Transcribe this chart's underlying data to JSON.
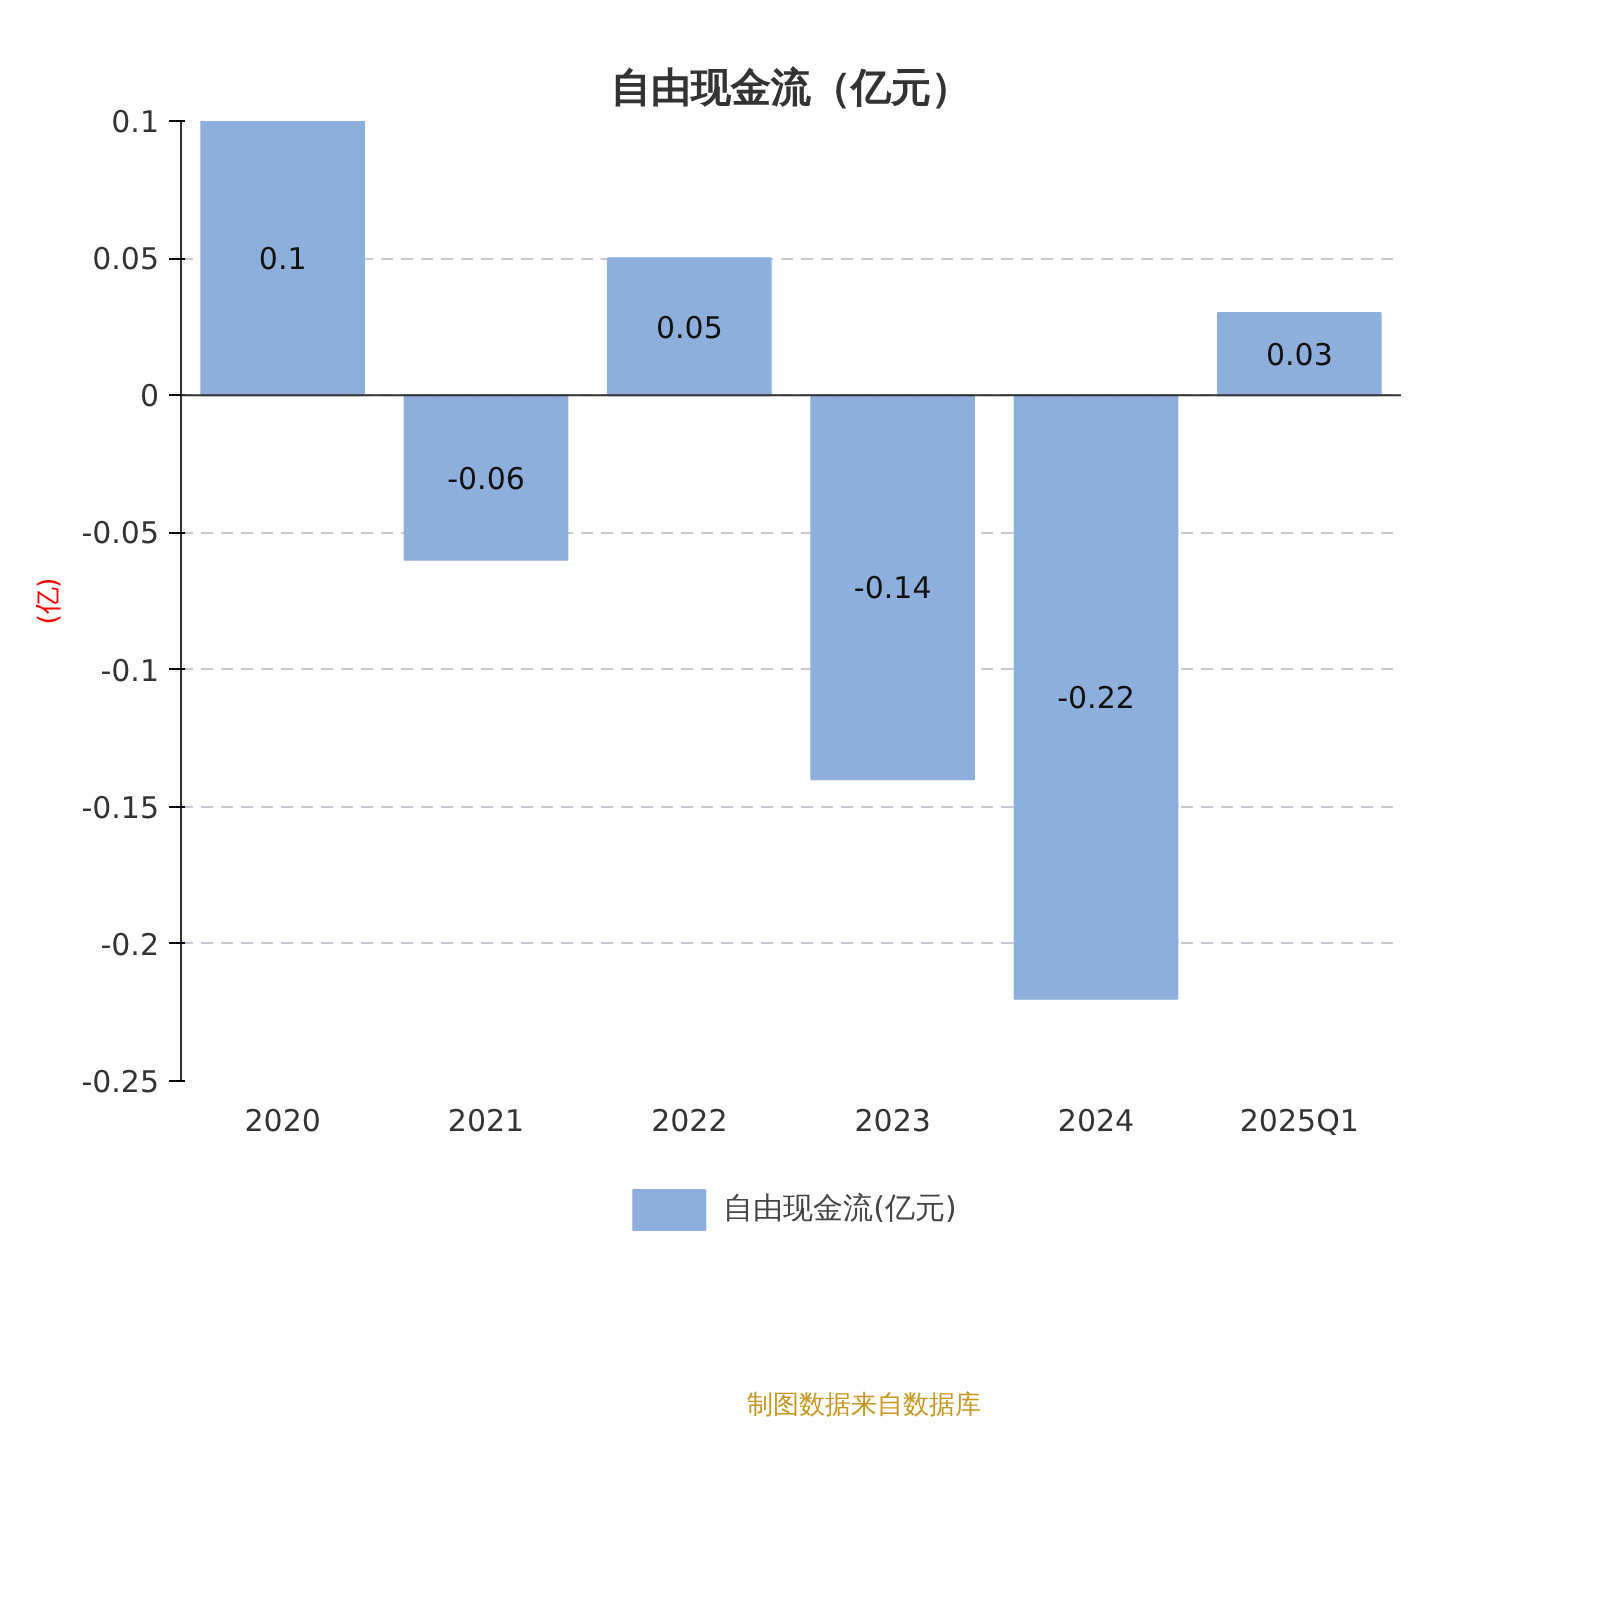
{
  "chart_data": {
    "type": "bar",
    "title": "自由现金流（亿元）",
    "ylabel": "(亿)",
    "categories": [
      "2020",
      "2021",
      "2022",
      "2023",
      "2024",
      "2025Q1"
    ],
    "series": [
      {
        "name": "自由现金流(亿元)",
        "color": "#8eaedb",
        "values": [
          0.1,
          -0.06,
          0.05,
          -0.14,
          -0.22,
          0.03
        ]
      }
    ],
    "ylim": [
      -0.25,
      0.1
    ],
    "yticks": [
      -0.25,
      -0.2,
      -0.15,
      -0.1,
      -0.05,
      0,
      0.05,
      0.1
    ],
    "grid": "y",
    "legend": "bottom",
    "data_labels": true,
    "annotations": [
      "制图数据来自数据库"
    ]
  }
}
